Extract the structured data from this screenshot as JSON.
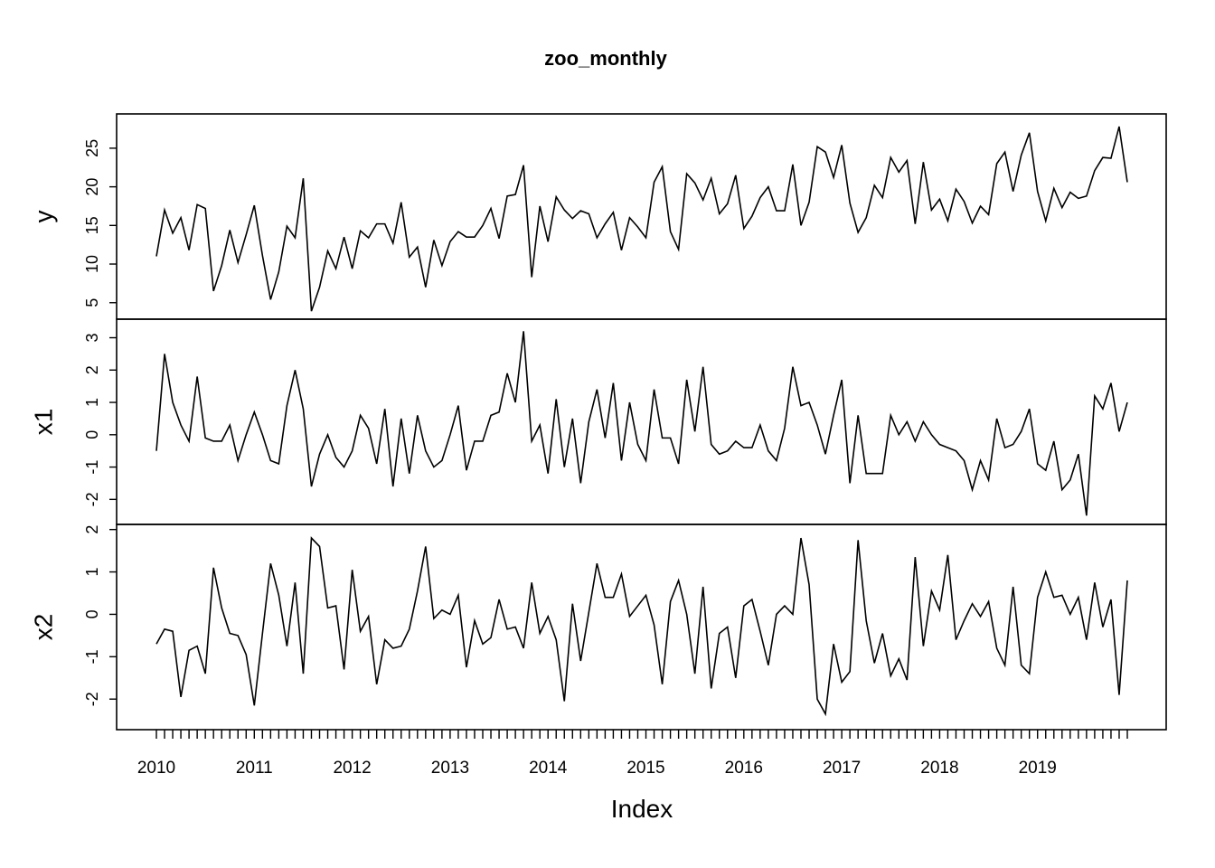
{
  "chart_data": {
    "type": "line",
    "title": "zoo_monthly",
    "xlabel": "Index",
    "x_start": "2010-01",
    "frequency": "monthly",
    "x_tick_labels": [
      "2010",
      "2011",
      "2012",
      "2013",
      "2014",
      "2015",
      "2016",
      "2017",
      "2018",
      "2019"
    ],
    "xlim": [
      "2010-01",
      "2019-12"
    ],
    "series": [
      {
        "name": "y",
        "ylim": [
          3.8,
          28.5
        ],
        "yticks": [
          5,
          10,
          15,
          20,
          25
        ],
        "values": [
          11.0,
          17.0,
          14.0,
          16.0,
          11.8,
          17.7,
          17.2,
          6.5,
          9.8,
          14.4,
          10.2,
          13.8,
          17.6,
          11.1,
          5.4,
          9.0,
          14.9,
          13.4,
          21.1,
          3.9,
          7.0,
          11.7,
          9.4,
          13.5,
          9.4,
          14.3,
          13.4,
          15.2,
          15.2,
          12.7,
          18.0,
          10.9,
          12.2,
          7.0,
          13.1,
          9.8,
          12.9,
          14.2,
          13.5,
          13.5,
          15.0,
          17.2,
          13.3,
          18.8,
          19.0,
          22.8,
          8.3,
          17.5,
          12.9,
          18.7,
          17.0,
          15.9,
          16.9,
          16.5,
          13.4,
          15.2,
          16.7,
          11.8,
          16.0,
          14.8,
          13.4,
          20.6,
          22.6,
          14.2,
          11.9,
          21.7,
          20.5,
          18.3,
          21.1,
          16.5,
          17.8,
          21.5,
          14.6,
          16.2,
          18.6,
          20.0,
          16.9,
          16.9,
          22.9,
          15.0,
          18.0,
          25.2,
          24.5,
          21.2,
          25.4,
          17.9,
          14.1,
          16.0,
          20.2,
          18.6,
          23.8,
          21.9,
          23.4,
          15.2,
          23.2,
          17.0,
          18.4,
          15.6,
          19.7,
          18.1,
          15.3,
          17.5,
          16.4,
          23.0,
          24.5,
          19.4,
          24.1,
          27.0,
          19.4,
          15.6,
          19.8,
          17.3,
          19.3,
          18.5,
          18.8,
          22.1,
          23.8,
          23.7,
          27.8,
          20.6
        ]
      },
      {
        "name": "x1",
        "ylim": [
          -2.55,
          3.35
        ],
        "yticks": [
          -2,
          -1,
          0,
          1,
          2,
          3
        ],
        "values": [
          -0.5,
          2.5,
          1.0,
          0.3,
          -0.2,
          1.8,
          -0.1,
          -0.2,
          -0.2,
          0.3,
          -0.8,
          0.0,
          0.7,
          0.0,
          -0.8,
          -0.9,
          0.9,
          2.0,
          0.8,
          -1.6,
          -0.6,
          0.0,
          -0.7,
          -1.0,
          -0.5,
          0.6,
          0.2,
          -0.9,
          0.8,
          -1.6,
          0.5,
          -1.2,
          0.6,
          -0.5,
          -1.0,
          -0.8,
          0.0,
          0.9,
          -1.1,
          -0.2,
          -0.2,
          0.6,
          0.7,
          1.9,
          1.0,
          3.2,
          -0.2,
          0.3,
          -1.2,
          1.1,
          -1.0,
          0.5,
          -1.5,
          0.4,
          1.4,
          -0.1,
          1.6,
          -0.8,
          1.0,
          -0.3,
          -0.8,
          1.4,
          -0.1,
          -0.1,
          -0.9,
          1.7,
          0.1,
          2.1,
          -0.3,
          -0.6,
          -0.5,
          -0.2,
          -0.4,
          -0.4,
          0.3,
          -0.5,
          -0.8,
          0.2,
          2.1,
          0.9,
          1.0,
          0.3,
          -0.6,
          0.6,
          1.7,
          -1.5,
          0.6,
          -1.2,
          -1.2,
          -1.2,
          0.6,
          0.0,
          0.4,
          -0.2,
          0.4,
          0.0,
          -0.3,
          -0.4,
          -0.5,
          -0.8,
          -1.7,
          -0.8,
          -1.4,
          0.5,
          -0.4,
          -0.3,
          0.1,
          0.8,
          -0.9,
          -1.1,
          -0.2,
          -1.7,
          -1.4,
          -0.6,
          -2.5,
          1.2,
          0.8,
          1.6,
          0.1,
          1.0
        ]
      },
      {
        "name": "x2",
        "ylim": [
          -2.55,
          1.95
        ],
        "yticks": [
          -2,
          -1,
          0,
          1,
          2
        ],
        "values": [
          -0.7,
          -0.35,
          -0.4,
          -1.95,
          -0.85,
          -0.75,
          -1.4,
          1.1,
          0.15,
          -0.45,
          -0.5,
          -0.95,
          -2.15,
          -0.45,
          1.2,
          0.45,
          -0.75,
          0.75,
          -1.4,
          1.8,
          1.6,
          0.15,
          0.2,
          -1.3,
          1.05,
          -0.4,
          -0.05,
          -1.65,
          -0.6,
          -0.8,
          -0.75,
          -0.35,
          0.55,
          1.6,
          -0.1,
          0.1,
          0.0,
          0.45,
          -1.25,
          -0.15,
          -0.7,
          -0.55,
          0.35,
          -0.35,
          -0.3,
          -0.8,
          0.75,
          -0.45,
          -0.05,
          -0.6,
          -2.05,
          0.25,
          -1.1,
          0.05,
          1.2,
          0.4,
          0.4,
          0.95,
          -0.05,
          0.2,
          0.45,
          -0.25,
          -1.65,
          0.3,
          0.8,
          0.0,
          -1.4,
          0.65,
          -1.75,
          -0.45,
          -0.3,
          -1.5,
          0.2,
          0.35,
          -0.4,
          -1.2,
          0.0,
          0.2,
          0.0,
          1.8,
          0.7,
          -2.0,
          -2.35,
          -0.7,
          -1.6,
          -1.35,
          1.75,
          -0.15,
          -1.15,
          -0.45,
          -1.45,
          -1.05,
          -1.55,
          1.35,
          -0.75,
          0.55,
          0.1,
          1.4,
          -0.6,
          -0.15,
          0.25,
          -0.05,
          0.3,
          -0.8,
          -1.2,
          0.65,
          -1.2,
          -1.4,
          0.4,
          1.0,
          0.4,
          0.45,
          0.0,
          0.4,
          -0.6,
          0.75,
          -0.3,
          0.35,
          -1.9,
          0.8
        ]
      }
    ],
    "grid": false,
    "legend": "none"
  }
}
